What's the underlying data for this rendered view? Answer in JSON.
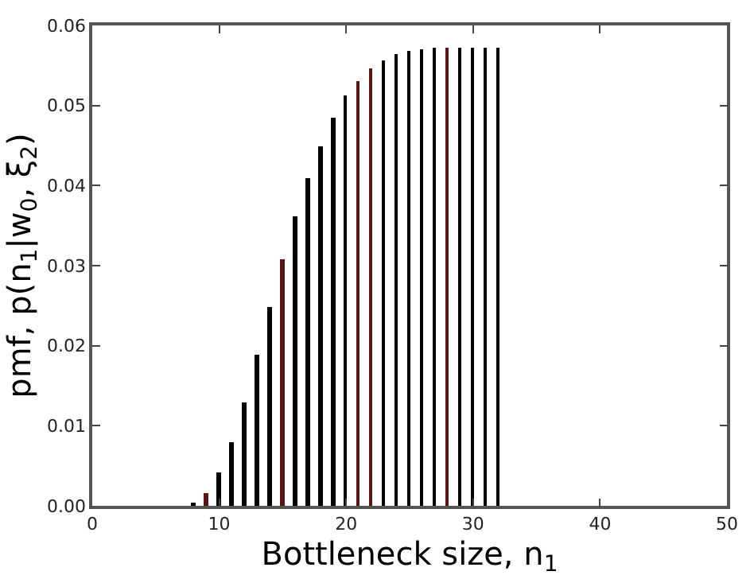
{
  "chart_data": {
    "type": "bar",
    "x": [
      8,
      9,
      10,
      11,
      12,
      13,
      14,
      15,
      16,
      17,
      18,
      19,
      20,
      21,
      22,
      23,
      24,
      25,
      26,
      27,
      28,
      29,
      30,
      31,
      32
    ],
    "values": [
      0.0004,
      0.0016,
      0.0042,
      0.008,
      0.013,
      0.0188,
      0.0248,
      0.0307,
      0.0361,
      0.0409,
      0.045,
      0.0484,
      0.0512,
      0.0531,
      0.0546,
      0.0557,
      0.0564,
      0.0569,
      0.0571,
      0.0572,
      0.0573,
      0.0573,
      0.0573,
      0.0573,
      0.0573
    ],
    "colors": [
      "#000000",
      "#5a1414",
      "#000000",
      "#000000",
      "#000000",
      "#000000",
      "#000000",
      "#5a1414",
      "#000000",
      "#000000",
      "#000000",
      "#000000",
      "#000000",
      "#5a1414",
      "#5a1414",
      "#000000",
      "#000000",
      "#000000",
      "#000000",
      "#000000",
      "#5a1414",
      "#000000",
      "#000000",
      "#000000",
      "#000000"
    ],
    "xlabel": "Bottleneck size, n$_{1}$",
    "ylabel": "pmf, p(n$_{1}$|w$_{0}$, ξ$_{2}$)",
    "xlim": [
      0,
      50
    ],
    "xticks": [
      0,
      10,
      20,
      30,
      40,
      50
    ],
    "ylim": [
      0,
      0.06
    ],
    "yticks": [
      {
        "value": 0,
        "label": "0.00"
      },
      {
        "value": 0.01,
        "label": "0.01"
      },
      {
        "value": 0.02,
        "label": "0.02"
      },
      {
        "value": 0.03,
        "label": "0.03"
      },
      {
        "value": 0.04,
        "label": "0.04"
      },
      {
        "value": 0.05,
        "label": "0.05"
      },
      {
        "value": 0.06,
        "label": "0.06"
      }
    ]
  }
}
